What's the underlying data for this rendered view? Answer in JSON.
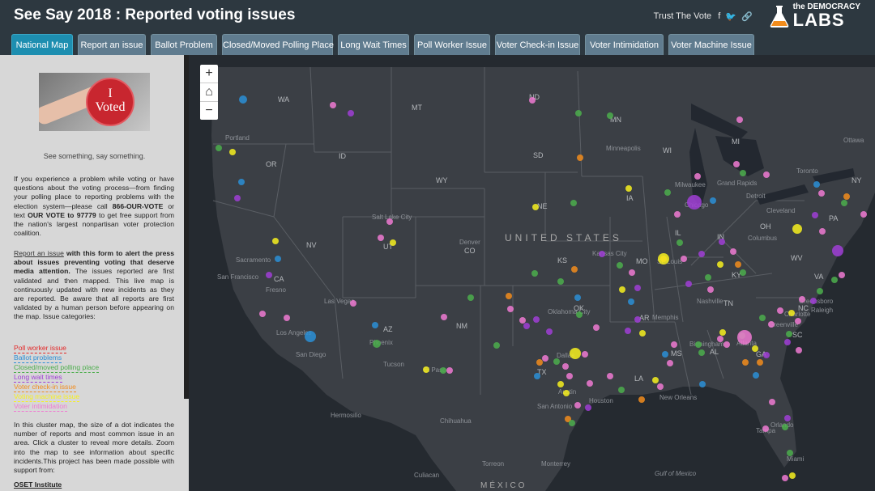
{
  "header": {
    "title": "See Say 2018 : Reported voting issues",
    "trust_link": "Trust The Vote",
    "social": [
      {
        "icon": "facebook-icon",
        "glyph": "f"
      },
      {
        "icon": "twitter-icon",
        "glyph": "🐦"
      },
      {
        "icon": "link-icon",
        "glyph": "🔗"
      }
    ],
    "logo": {
      "small": "the DEMOCRACY",
      "big": "LABS",
      "icon": "flask-icon"
    }
  },
  "tabs": [
    {
      "label": "National Map",
      "active": true
    },
    {
      "label": "Report an issue"
    },
    {
      "label": "Ballot Problem"
    },
    {
      "label": "Closed/Moved Polling Place"
    },
    {
      "label": "Long Wait Times"
    },
    {
      "label": "Poll Worker Issue"
    },
    {
      "label": "Voter Check-in Issue"
    },
    {
      "label": "Voter Intimidation"
    },
    {
      "label": "Voter Machine Issue"
    }
  ],
  "sidebar": {
    "photo": {
      "sticker_line1": "I",
      "sticker_line2": "Voted"
    },
    "caption": "See something, say something.",
    "intro": {
      "before": "If you experience a problem while voting or have questions about the voting process—from finding your polling place to reporting problems with the election system—please call ",
      "phone": "866-OUR-VOTE",
      "middle": " or text ",
      "text_code": "OUR VOTE to 97779",
      "after": " to get free support from the nation's largest nonpartisan voter protection coalition."
    },
    "report": {
      "link": "Report an issue",
      "bold": " with this form to alert the press about issues preventing voting that deserve media attention.",
      "rest": " The issues reported are first validated and then mapped. This live map is continuously updated with new incidents as they are reported. Be aware that all reports are first validated by a human person before appearing on the map. Issue categories:"
    },
    "legend": [
      {
        "label": "Poll worker issue",
        "color": "#e32626"
      },
      {
        "label": "Ballot problems",
        "color": "#2c8fd6"
      },
      {
        "label": "Closed/moved polling place",
        "color": "#4cae4c"
      },
      {
        "label": "Long wait times",
        "color": "#a03ed6"
      },
      {
        "label": "Voter check-in issue",
        "color": "#f28c1c"
      },
      {
        "label": "Voting machine issue",
        "color": "#f7f01e"
      },
      {
        "label": "Voter intimidation",
        "color": "#f07ad2"
      }
    ],
    "cluster_text": "In this cluster map, the size of a dot indicates the number of reports and most common issue in an area. Click a cluster to reveal more details. Zoom into the map to see information about specific incidents.This project has been made possible with support from:",
    "supporter": "OSET Institute"
  },
  "map": {
    "zoom_in": "+",
    "home": "⌂",
    "zoom_out": "−",
    "country_label": "UNITED STATES",
    "mexico_label": "MÉXICO",
    "gulf_label": "Gulf of Mexico",
    "states": [
      "WA",
      "MT",
      "ND",
      "MN",
      "OR",
      "ID",
      "SD",
      "WI",
      "MI",
      "WY",
      "NE",
      "IA",
      "IL",
      "IN",
      "OH",
      "PA",
      "NY",
      "NV",
      "UT",
      "CO",
      "KS",
      "MO",
      "KY",
      "WV",
      "CA",
      "AZ",
      "NM",
      "OK",
      "AR",
      "TN",
      "NC",
      "VA",
      "TX",
      "LA",
      "MS",
      "AL",
      "GA",
      "SC"
    ],
    "cities": [
      "Portland",
      "Minneapolis",
      "Milwaukee",
      "Grand Rapids",
      "Detroit",
      "Chicago",
      "Cleveland",
      "Columbus",
      "Toronto",
      "Ottawa",
      "Salt Lake City",
      "Denver",
      "Sacramento",
      "San Francisco",
      "Fresno",
      "Las Vegas",
      "Los Angeles",
      "San Diego",
      "Phoenix",
      "Tucson",
      "Kansas City",
      "St. Louis",
      "Oklahoma City",
      "Memphis",
      "Nashville",
      "Atlanta",
      "Birmingham",
      "Charlotte",
      "Raleigh",
      "Greensboro",
      "Greenville",
      "Dallas",
      "Austin",
      "San Antonio",
      "Houston",
      "New Orleans",
      "El Paso",
      "Chihuahua",
      "Monterrey",
      "Culiacan",
      "Torreon",
      "Tampa",
      "Miami",
      "Orlando",
      "Hermosillo"
    ],
    "colors": {
      "land": "#3b3f45",
      "water": "#232830",
      "border": "#5a5e64"
    }
  }
}
